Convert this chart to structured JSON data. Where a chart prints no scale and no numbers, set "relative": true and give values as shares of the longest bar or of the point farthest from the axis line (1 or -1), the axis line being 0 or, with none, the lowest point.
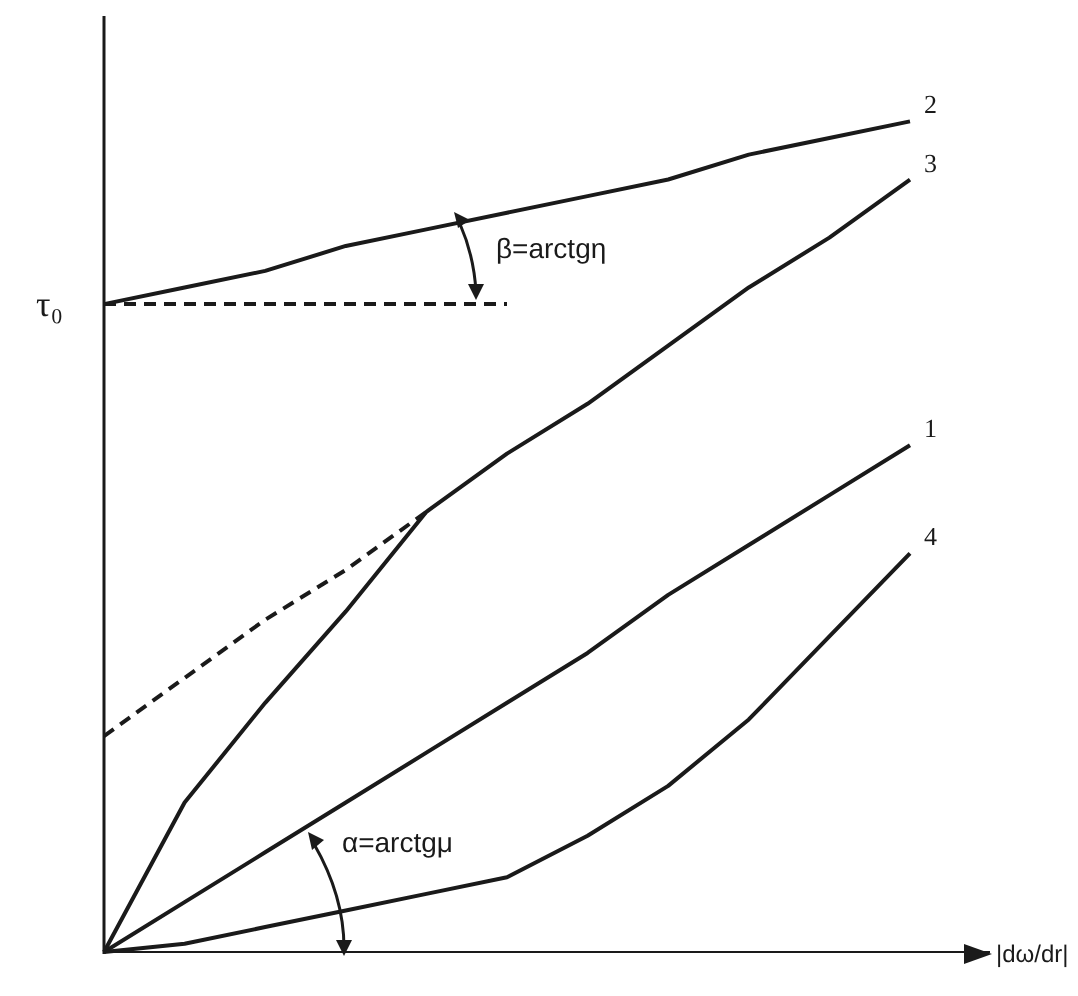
{
  "chart_data": {
    "type": "line",
    "relative": true,
    "xlabel": "|dω/dr|",
    "categories": [
      null,
      null,
      null,
      null,
      null,
      null,
      null,
      null,
      null,
      null,
      null
    ],
    "series": [
      {
        "name": "1",
        "color": "#1a1a1a",
        "values": [
          0,
          0.06,
          0.12,
          0.18,
          0.24,
          0.3,
          0.36,
          0.43,
          0.49,
          0.55,
          0.61
        ]
      },
      {
        "name": "2",
        "color": "#1a1a1a",
        "values": [
          0.78,
          0.8,
          0.82,
          0.85,
          0.87,
          0.89,
          0.91,
          0.93,
          0.96,
          0.98,
          1
        ]
      },
      {
        "name": "3",
        "color": "#1a1a1a",
        "values": [
          0,
          0.18,
          0.3,
          0.41,
          0.53,
          0.6,
          0.66,
          0.73,
          0.8,
          0.86,
          0.93
        ]
      },
      {
        "name": "4",
        "color": "#1a1a1a",
        "values": [
          0,
          0.01,
          0.03,
          0.05,
          0.07,
          0.09,
          0.14,
          0.2,
          0.28,
          0.38,
          0.48
        ]
      },
      {
        "color": "#1a1a1a",
        "line_style": "dashed",
        "values": [
          0.26,
          0.33,
          0.4,
          0.46,
          0.53,
          null,
          null,
          null,
          null,
          null,
          null
        ]
      },
      {
        "color": "#1a1a1a",
        "line_style": "dashed",
        "values": [
          0.78,
          0.78,
          0.78,
          0.78,
          0.78,
          0.78,
          null,
          null,
          null,
          null,
          null
        ]
      }
    ],
    "annotations": [
      "τ₀",
      "β=arctgη",
      "α=arctgμ"
    ],
    "legend": false,
    "grid": false
  }
}
